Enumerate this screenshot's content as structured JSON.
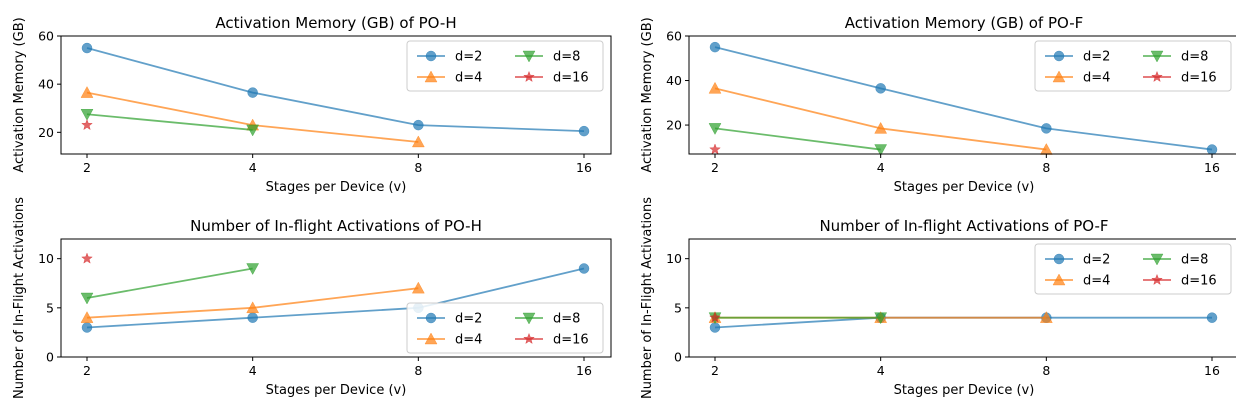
{
  "colors": {
    "d=2": "#1f77b4",
    "d=4": "#ff7f0e",
    "d=8": "#2ca02c",
    "d=16": "#d62728"
  },
  "chart_data": [
    {
      "type": "line",
      "title": "Activation Memory (GB) of PO-H",
      "xlabel": "Stages per Device (v)",
      "ylabel": "Activation Memory (GB)",
      "x_scale": "log2",
      "xticks": [
        2,
        4,
        8,
        16
      ],
      "yticks": [
        20,
        40,
        60
      ],
      "xlim": [
        2,
        16
      ],
      "ylim": [
        11,
        60
      ],
      "legend": "top-right",
      "series": [
        {
          "name": "d=2",
          "marker": "circle",
          "x": [
            2,
            4,
            8,
            16
          ],
          "y": [
            55,
            36.5,
            23,
            20.5
          ]
        },
        {
          "name": "d=4",
          "marker": "triangle-up",
          "x": [
            2,
            4,
            8
          ],
          "y": [
            36.5,
            23,
            16
          ]
        },
        {
          "name": "d=8",
          "marker": "triangle-down",
          "x": [
            2,
            4
          ],
          "y": [
            27.5,
            21
          ]
        },
        {
          "name": "d=16",
          "marker": "star",
          "x": [
            2
          ],
          "y": [
            23
          ]
        }
      ]
    },
    {
      "type": "line",
      "title": "Activation Memory (GB) of PO-F",
      "xlabel": "Stages per Device (v)",
      "ylabel": "Activation Memory (GB)",
      "x_scale": "log2",
      "xticks": [
        2,
        4,
        8,
        16
      ],
      "yticks": [
        20,
        40,
        60
      ],
      "xlim": [
        2,
        16
      ],
      "ylim": [
        7,
        60
      ],
      "legend": "top-right",
      "series": [
        {
          "name": "d=2",
          "marker": "circle",
          "x": [
            2,
            4,
            8,
            16
          ],
          "y": [
            55,
            36.5,
            18.5,
            9
          ]
        },
        {
          "name": "d=4",
          "marker": "triangle-up",
          "x": [
            2,
            4,
            8
          ],
          "y": [
            36.5,
            18.5,
            9
          ]
        },
        {
          "name": "d=8",
          "marker": "triangle-down",
          "x": [
            2,
            4
          ],
          "y": [
            18.5,
            9
          ]
        },
        {
          "name": "d=16",
          "marker": "star",
          "x": [
            2
          ],
          "y": [
            9
          ]
        }
      ]
    },
    {
      "type": "line",
      "title": "Number of In-flight Activations of PO-H",
      "xlabel": "Stages per Device (v)",
      "ylabel": "Number of In-Flight Activations",
      "x_scale": "log2",
      "xticks": [
        2,
        4,
        8,
        16
      ],
      "yticks": [
        0,
        5,
        10
      ],
      "xlim": [
        2,
        16
      ],
      "ylim": [
        0,
        12
      ],
      "legend": "bottom-right",
      "series": [
        {
          "name": "d=2",
          "marker": "circle",
          "x": [
            2,
            4,
            8,
            16
          ],
          "y": [
            3,
            4,
            5,
            9
          ]
        },
        {
          "name": "d=4",
          "marker": "triangle-up",
          "x": [
            2,
            4,
            8
          ],
          "y": [
            4,
            5,
            7
          ]
        },
        {
          "name": "d=8",
          "marker": "triangle-down",
          "x": [
            2,
            4
          ],
          "y": [
            6,
            9
          ]
        },
        {
          "name": "d=16",
          "marker": "star",
          "x": [
            2
          ],
          "y": [
            10
          ]
        }
      ]
    },
    {
      "type": "line",
      "title": "Number of In-flight Activations of PO-F",
      "xlabel": "Stages per Device (v)",
      "ylabel": "Number of In-Flight Activations",
      "x_scale": "log2",
      "xticks": [
        2,
        4,
        8,
        16
      ],
      "yticks": [
        0,
        5,
        10
      ],
      "xlim": [
        2,
        16
      ],
      "ylim": [
        0,
        12
      ],
      "legend": "top-right",
      "series": [
        {
          "name": "d=2",
          "marker": "circle",
          "x": [
            2,
            4,
            8,
            16
          ],
          "y": [
            3,
            4,
            4,
            4
          ]
        },
        {
          "name": "d=4",
          "marker": "triangle-up",
          "x": [
            2,
            4,
            8
          ],
          "y": [
            4,
            4,
            4
          ]
        },
        {
          "name": "d=8",
          "marker": "triangle-down",
          "x": [
            2,
            4
          ],
          "y": [
            4,
            4
          ]
        },
        {
          "name": "d=16",
          "marker": "star",
          "x": [
            2
          ],
          "y": [
            4
          ]
        }
      ]
    }
  ]
}
